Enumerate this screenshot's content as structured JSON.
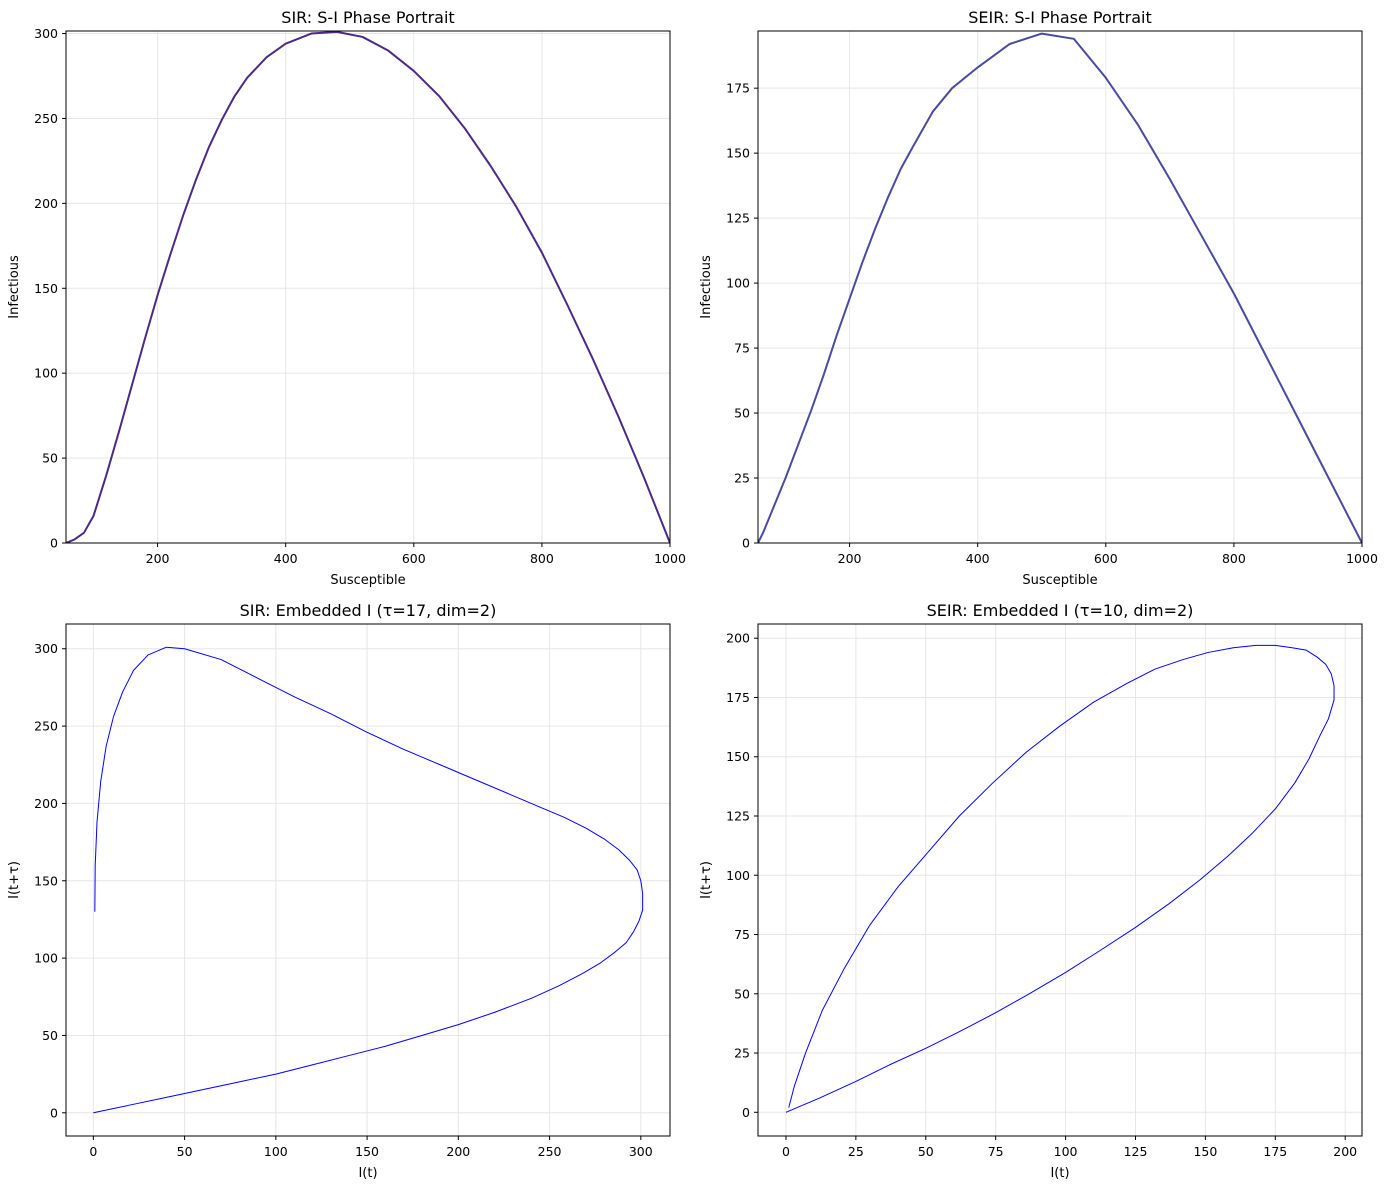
{
  "chart_data": [
    {
      "type": "line",
      "title": "SIR: S-I Phase Portrait",
      "xlabel": "Susceptible",
      "ylabel": "Infectious",
      "xlim": [
        57,
        1000
      ],
      "ylim": [
        0,
        301.5
      ],
      "xticks": [
        200,
        400,
        600,
        800,
        1000
      ],
      "yticks": [
        0,
        50,
        100,
        150,
        200,
        250,
        300
      ],
      "grid": true,
      "color": "#4b2a86",
      "series": [
        {
          "x": [
            1000,
            960,
            920,
            880,
            840,
            800,
            760,
            720,
            680,
            640,
            600,
            560,
            520,
            480,
            440,
            400,
            370,
            340,
            320,
            300,
            280,
            260,
            240,
            220,
            200,
            180,
            160,
            140,
            120,
            100,
            85,
            70,
            60,
            57
          ],
          "y": [
            0,
            38,
            74,
            108,
            140,
            171,
            198,
            222,
            244,
            263,
            278,
            290,
            298,
            301,
            300,
            294,
            286,
            274,
            263,
            249,
            233,
            214,
            193,
            170,
            146,
            120,
            93,
            66,
            40,
            16,
            6,
            2,
            0.5,
            0
          ]
        }
      ]
    },
    {
      "type": "line",
      "title": "SEIR: S-I Phase Portrait",
      "xlabel": "Susceptible",
      "ylabel": "Infectious",
      "xlim": [
        57,
        1000
      ],
      "ylim": [
        0,
        197
      ],
      "xticks": [
        200,
        400,
        600,
        800,
        1000
      ],
      "yticks": [
        0,
        25,
        50,
        75,
        100,
        125,
        150,
        175
      ],
      "grid": true,
      "color": "#4a4aa0",
      "series": [
        {
          "x": [
            1000,
            950,
            900,
            850,
            800,
            750,
            700,
            650,
            600,
            550,
            500,
            450,
            400,
            360,
            330,
            300,
            280,
            260,
            240,
            220,
            200,
            180,
            160,
            140,
            120,
            100,
            85,
            75,
            65,
            60,
            57
          ],
          "y": [
            0,
            24,
            48,
            72,
            96,
            118,
            140,
            161,
            179,
            194,
            196,
            192,
            183,
            175,
            166,
            153,
            144,
            133,
            121,
            108,
            94,
            80,
            65,
            51,
            38,
            25,
            16,
            10,
            4,
            1.5,
            0
          ]
        }
      ]
    },
    {
      "type": "line",
      "title": "SIR: Embedded I (τ=17, dim=2)",
      "xlabel": "I(t)",
      "ylabel": "I(t+τ)",
      "xlim": [
        -15,
        316
      ],
      "ylim": [
        -15,
        316
      ],
      "xticks": [
        0,
        50,
        100,
        150,
        200,
        250,
        300
      ],
      "yticks": [
        0,
        50,
        100,
        150,
        200,
        250,
        300
      ],
      "grid": true,
      "color": "#0000ff",
      "series": [
        {
          "x": [
            0,
            20,
            40,
            60,
            80,
            100,
            120,
            140,
            160,
            180,
            200,
            220,
            240,
            255,
            268,
            278,
            286,
            292,
            296,
            299,
            301,
            301,
            300,
            298,
            294,
            288,
            280,
            270,
            258,
            244,
            228,
            210,
            190,
            170,
            150,
            130,
            110,
            90,
            70,
            50,
            40,
            30,
            22,
            16,
            11,
            7,
            4,
            2,
            1,
            0.8
          ],
          "y": [
            0,
            5,
            10,
            15,
            20,
            25,
            31,
            37,
            43,
            50,
            57,
            65,
            74,
            82,
            90,
            97,
            104,
            110,
            117,
            124,
            131,
            142,
            150,
            157,
            163,
            170,
            177,
            184,
            191,
            198,
            206,
            215,
            225,
            235,
            246,
            258,
            269,
            281,
            293,
            300,
            301,
            296,
            286,
            272,
            256,
            237,
            214,
            188,
            160,
            130
          ]
        }
      ]
    },
    {
      "type": "line",
      "title": "SEIR: Embedded I (τ=10, dim=2)",
      "xlabel": "I(t)",
      "ylabel": "I(t+τ)",
      "xlim": [
        -10,
        206
      ],
      "ylim": [
        -10,
        206
      ],
      "xticks": [
        0,
        25,
        50,
        75,
        100,
        125,
        150,
        175,
        200
      ],
      "yticks": [
        0,
        25,
        50,
        75,
        100,
        125,
        150,
        175,
        200
      ],
      "grid": true,
      "color": "#0000ff",
      "series": [
        {
          "x": [
            0,
            12,
            25,
            37,
            50,
            62,
            75,
            87,
            100,
            112,
            125,
            137,
            148,
            158,
            167,
            175,
            182,
            187,
            191,
            194,
            196,
            196,
            195,
            193,
            190,
            186,
            181,
            175,
            168,
            160,
            151,
            142,
            132,
            122,
            110,
            98,
            86,
            74,
            62,
            51,
            40,
            30,
            21,
            13,
            7,
            3,
            1
          ],
          "y": [
            0,
            6,
            13,
            20,
            27,
            34,
            42,
            50,
            59,
            68,
            78,
            88,
            98,
            108,
            118,
            128,
            139,
            149,
            159,
            166,
            174,
            180,
            185,
            189,
            192,
            195,
            196,
            197,
            197,
            196,
            194,
            191,
            187,
            181,
            173,
            163,
            152,
            139,
            125,
            110,
            95,
            79,
            61,
            43,
            25,
            11,
            2
          ]
        }
      ]
    }
  ]
}
